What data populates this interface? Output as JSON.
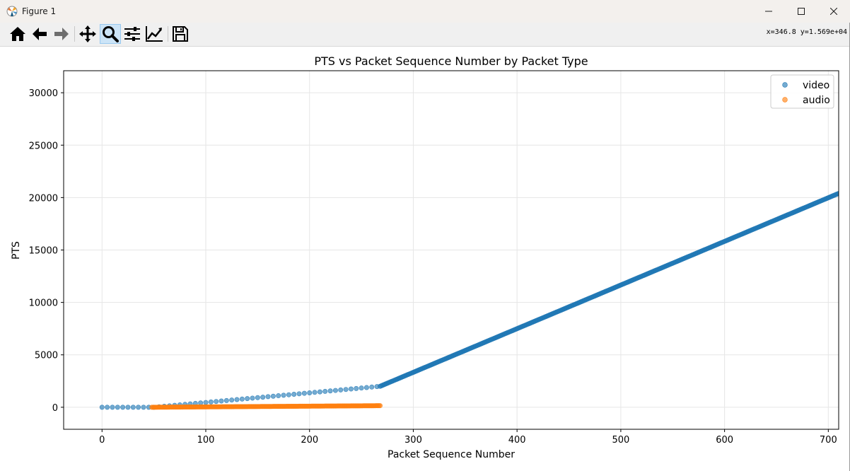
{
  "window": {
    "title": "Figure 1"
  },
  "toolbar": {
    "tools": [
      {
        "name": "home-icon",
        "active": false
      },
      {
        "name": "back-icon",
        "active": false
      },
      {
        "name": "forward-icon",
        "active": false
      },
      {
        "name": "pan-icon",
        "active": false
      },
      {
        "name": "zoom-icon",
        "active": true
      },
      {
        "name": "configure-subplots-icon",
        "active": false
      },
      {
        "name": "edit-axis-icon",
        "active": false
      },
      {
        "name": "save-icon",
        "active": false
      }
    ],
    "coord_readout": "x=346.8 y=1.569e+04"
  },
  "colors": {
    "video": "#1f77b4",
    "audio": "#ff7f0e"
  },
  "chart_data": {
    "type": "scatter",
    "title": "PTS vs Packet Sequence Number by Packet Type",
    "xlabel": "Packet Sequence Number",
    "ylabel": "PTS",
    "xlim": [
      -37,
      710
    ],
    "ylim": [
      -2100,
      32100
    ],
    "xticks": [
      0,
      100,
      200,
      300,
      400,
      500,
      600,
      700
    ],
    "yticks": [
      0,
      5000,
      10000,
      15000,
      20000,
      25000,
      30000
    ],
    "xtick_labels": [
      "0",
      "100",
      "200",
      "300",
      "400",
      "500",
      "600",
      "700"
    ],
    "ytick_labels": [
      "0",
      "5000",
      "10000",
      "15000",
      "20000",
      "25000",
      "30000"
    ],
    "grid": true,
    "legend_position": "top-right",
    "series": [
      {
        "name": "video",
        "segments": [
          {
            "x_start": 0,
            "x_end": 45,
            "step": 5,
            "pts_start": 0,
            "pts_end": 0
          },
          {
            "x_start": 50,
            "x_end": 268,
            "step": 5,
            "pts_start": 0,
            "pts_end": 2000
          },
          {
            "x_start": 268,
            "x_end": 710,
            "step": 1,
            "pts_start": 2000,
            "pts_end": 20400
          }
        ]
      },
      {
        "name": "audio",
        "segments": [
          {
            "x_start": 48,
            "x_end": 268,
            "step": 1,
            "pts_start": 0,
            "pts_end": 150
          }
        ]
      }
    ]
  }
}
